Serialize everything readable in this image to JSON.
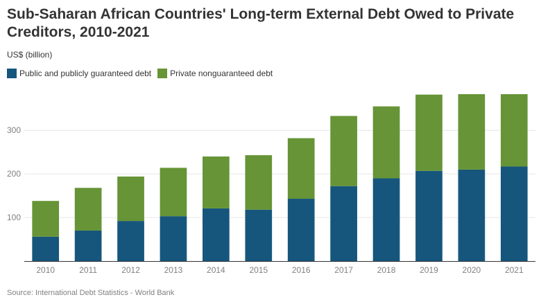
{
  "title": "Sub-Saharan African Countries' Long-term External Debt Owed to Private Creditors, 2010-2021",
  "unit_label": "US$ (billion)",
  "source": "Source: International Debt Statistics - World Bank",
  "chart_data": {
    "type": "bar",
    "stacked": true,
    "categories": [
      "2010",
      "2011",
      "2012",
      "2013",
      "2014",
      "2015",
      "2016",
      "2017",
      "2018",
      "2019",
      "2020",
      "2021"
    ],
    "series": [
      {
        "name": "Public and publicly guaranteed debt",
        "color": "#16567c",
        "values": [
          56,
          70,
          92,
          103,
          121,
          118,
          143,
          172,
          190,
          207,
          210,
          217
        ]
      },
      {
        "name": "Private nonguaranteed debt",
        "color": "#669436",
        "values": [
          82,
          98,
          102,
          111,
          119,
          125,
          139,
          161,
          165,
          175,
          173,
          166
        ]
      }
    ],
    "ylim": [
      0,
      383
    ],
    "yticks": [
      100,
      200,
      300
    ],
    "grid": true,
    "legend_position": "top-left"
  }
}
